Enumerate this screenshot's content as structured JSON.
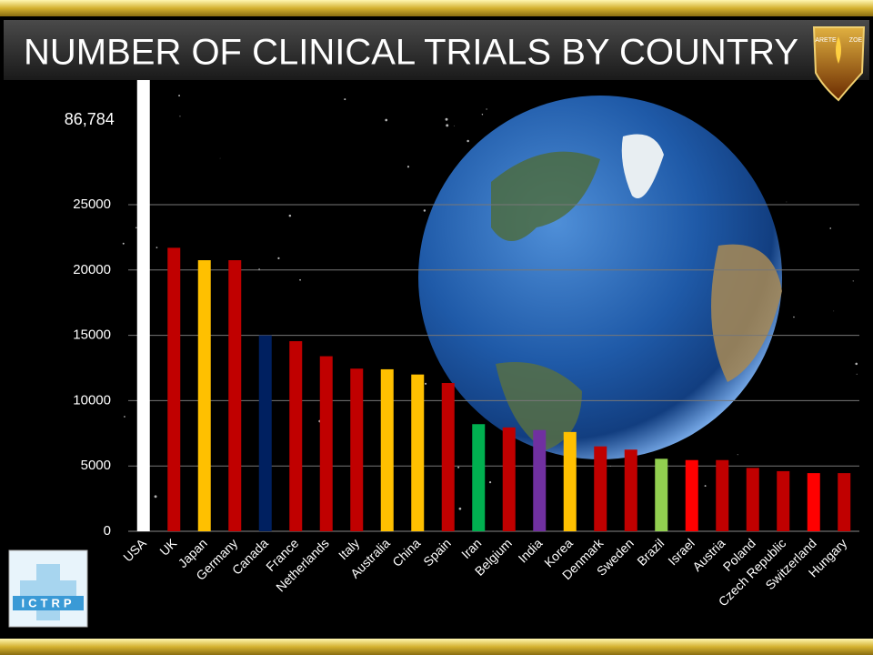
{
  "chart_data": {
    "type": "bar",
    "title": "NUMBER OF CLINICAL TRIALS BY COUNTRY",
    "categories": [
      "USA",
      "UK",
      "Japan",
      "Germany",
      "Canada",
      "France",
      "Netherlands",
      "Italy",
      "Australia",
      "China",
      "Spain",
      "Iran",
      "Belgium",
      "India",
      "Korea",
      "Denmark",
      "Sweden",
      "Brazil",
      "Israel",
      "Austria",
      "Poland",
      "Czech Republic",
      "Switzerland",
      "Hungary"
    ],
    "values": [
      86784,
      21700,
      20750,
      20750,
      15000,
      14550,
      13400,
      12450,
      12400,
      12000,
      11350,
      8200,
      7950,
      7750,
      7600,
      6500,
      6250,
      5550,
      5450,
      5450,
      4850,
      4600,
      4450,
      4450
    ],
    "value_labels": [
      "86,784",
      null,
      null,
      null,
      null,
      null,
      null,
      null,
      null,
      null,
      null,
      null,
      null,
      null,
      null,
      null,
      null,
      null,
      null,
      null,
      null,
      null,
      null,
      null
    ],
    "colors": [
      "#ffffff",
      "#c00000",
      "#ffc000",
      "#c00000",
      "#002060",
      "#c00000",
      "#c00000",
      "#c00000",
      "#ffc000",
      "#ffc000",
      "#c00000",
      "#00b050",
      "#c00000",
      "#7030a0",
      "#ffc000",
      "#c00000",
      "#c00000",
      "#92d050",
      "#ff0000",
      "#c00000",
      "#c00000",
      "#c00000",
      "#ff0000",
      "#c00000"
    ],
    "ylim": [
      0,
      34400
    ],
    "yticks": [
      0,
      5000,
      10000,
      15000,
      20000,
      25000
    ],
    "grid": true
  },
  "logos": {
    "top_left_word": "ARETE",
    "top_right_word": "ZOE",
    "bottom": "ICTRP"
  }
}
